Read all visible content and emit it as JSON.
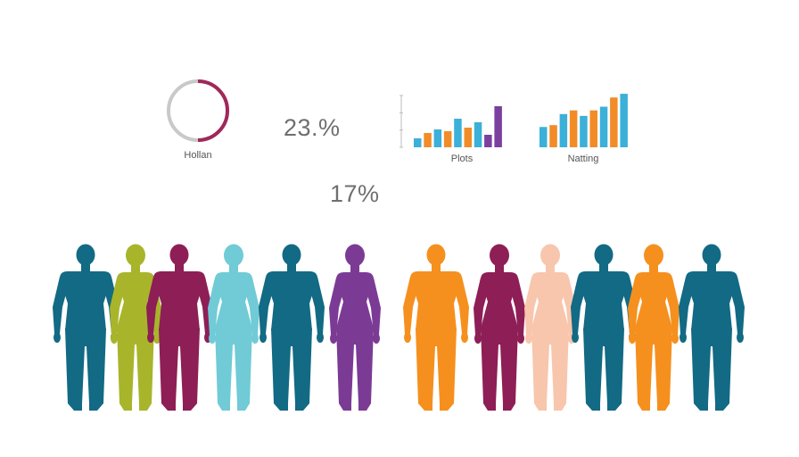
{
  "donut": {
    "label": "Hollan",
    "fraction": 0.5,
    "accent": "#a0285a",
    "track": "#c9c9c9"
  },
  "stats": {
    "primary": "23.%",
    "secondary": "17%"
  },
  "chart_data": [
    {
      "type": "bar",
      "title": "Plots",
      "values": [
        10,
        16,
        20,
        18,
        32,
        22,
        28,
        14,
        46
      ],
      "colors": [
        "#3bb0d9",
        "#f28c28",
        "#3bb0d9",
        "#f28c28",
        "#3bb0d9",
        "#f28c28",
        "#3bb0d9",
        "#7b3fa0",
        "#7b3fa0"
      ],
      "ylim": [
        0,
        50
      ]
    },
    {
      "type": "bar",
      "title": "Natting",
      "values": [
        22,
        24,
        36,
        40,
        34,
        40,
        44,
        54,
        58
      ],
      "colors": [
        "#3bb0d9",
        "#f28c28",
        "#3bb0d9",
        "#f28c28",
        "#3bb0d9",
        "#f28c28",
        "#3bb0d9",
        "#f28c28",
        "#3bb0d9"
      ],
      "ylim": [
        0,
        60
      ]
    }
  ],
  "people": [
    {
      "kind": "man",
      "color": "#126a84"
    },
    {
      "kind": "woman",
      "color": "#a8b52b"
    },
    {
      "kind": "man",
      "color": "#8e1e56"
    },
    {
      "kind": "woman",
      "color": "#70cbd6"
    },
    {
      "kind": "man",
      "color": "#126a84"
    },
    {
      "kind": "woman",
      "color": "#7b3b95"
    },
    {
      "kind": "man",
      "color": "#f5901e"
    },
    {
      "kind": "woman",
      "color": "#8e1e56"
    },
    {
      "kind": "woman",
      "color": "#f7c6ad"
    },
    {
      "kind": "man",
      "color": "#126a84"
    },
    {
      "kind": "woman",
      "color": "#f5901e"
    },
    {
      "kind": "man",
      "color": "#126a84"
    }
  ]
}
